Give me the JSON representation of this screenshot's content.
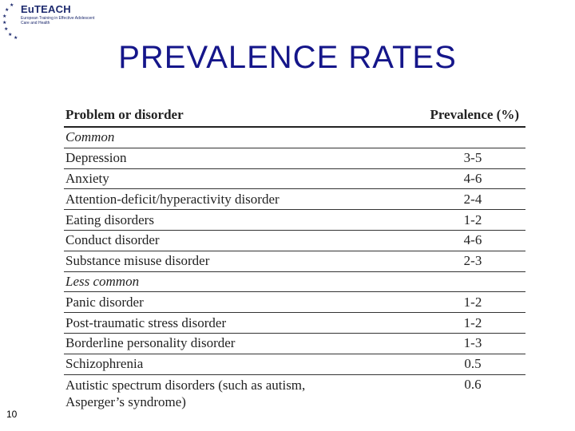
{
  "logo": {
    "brand": "EuTEACH",
    "tagline": "European Training in Effective Adolescent Care and Health"
  },
  "title": "PREVALENCE  RATES",
  "table": {
    "headers": [
      "Problem or disorder",
      "Prevalence (%)"
    ],
    "sections": [
      {
        "label": "Common",
        "rows": [
          [
            "Depression",
            "3-5"
          ],
          [
            "Anxiety",
            "4-6"
          ],
          [
            "Attention-deficit/hyperactivity disorder",
            "2-4"
          ],
          [
            "Eating disorders",
            "1-2"
          ],
          [
            "Conduct disorder",
            "4-6"
          ],
          [
            "Substance misuse disorder",
            "2-3"
          ]
        ]
      },
      {
        "label": "Less common",
        "rows": [
          [
            "Panic disorder",
            "1-2"
          ],
          [
            "Post-traumatic stress disorder",
            "1-2"
          ],
          [
            "Borderline personality disorder",
            "1-3"
          ],
          [
            "Schizophrenia",
            "0.5"
          ],
          [
            "Autistic spectrum disorders (such as autism, Asperger’s syndrome)",
            "0.6"
          ]
        ]
      }
    ]
  },
  "slide_number": "10",
  "colors": {
    "title": "#15168a",
    "logo": "#1d2a6e"
  }
}
